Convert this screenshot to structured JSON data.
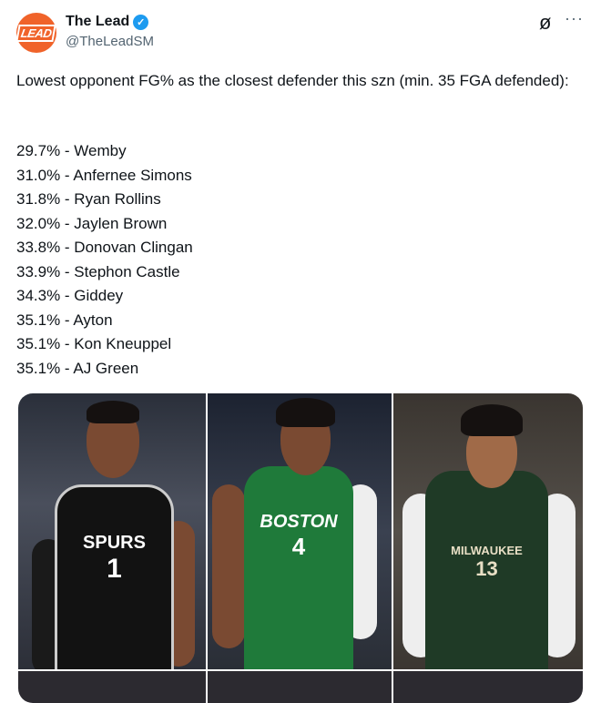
{
  "author": {
    "name": "The Lead",
    "handle": "@TheLeadSM",
    "avatar_text": "LEAD",
    "verified": true,
    "brand_color": "#f0632a"
  },
  "icons": {
    "grok": "grok-icon",
    "more": "more-icon"
  },
  "more_label": "···",
  "tweet": {
    "intro": "Lowest opponent FG% as the closest defender this szn (min. 35 FGA defended):",
    "list": [
      "29.7% - Wemby",
      "31.0% - Anfernee Simons",
      "31.8% - Ryan Rollins",
      "32.0% - Jaylen Brown",
      "33.8% - Donovan Clingan",
      "33.9% - Stephon Castle",
      "34.3% - Giddey",
      "35.1% - Ayton",
      "35.1% - Kon Kneuppel",
      "35.1% - AJ Green"
    ]
  },
  "media": {
    "jerseys": [
      {
        "team": "SPURS",
        "number": "1"
      },
      {
        "team": "BOSTON",
        "number": "4"
      },
      {
        "team": "MILWAUKEE",
        "number": "13"
      }
    ]
  }
}
